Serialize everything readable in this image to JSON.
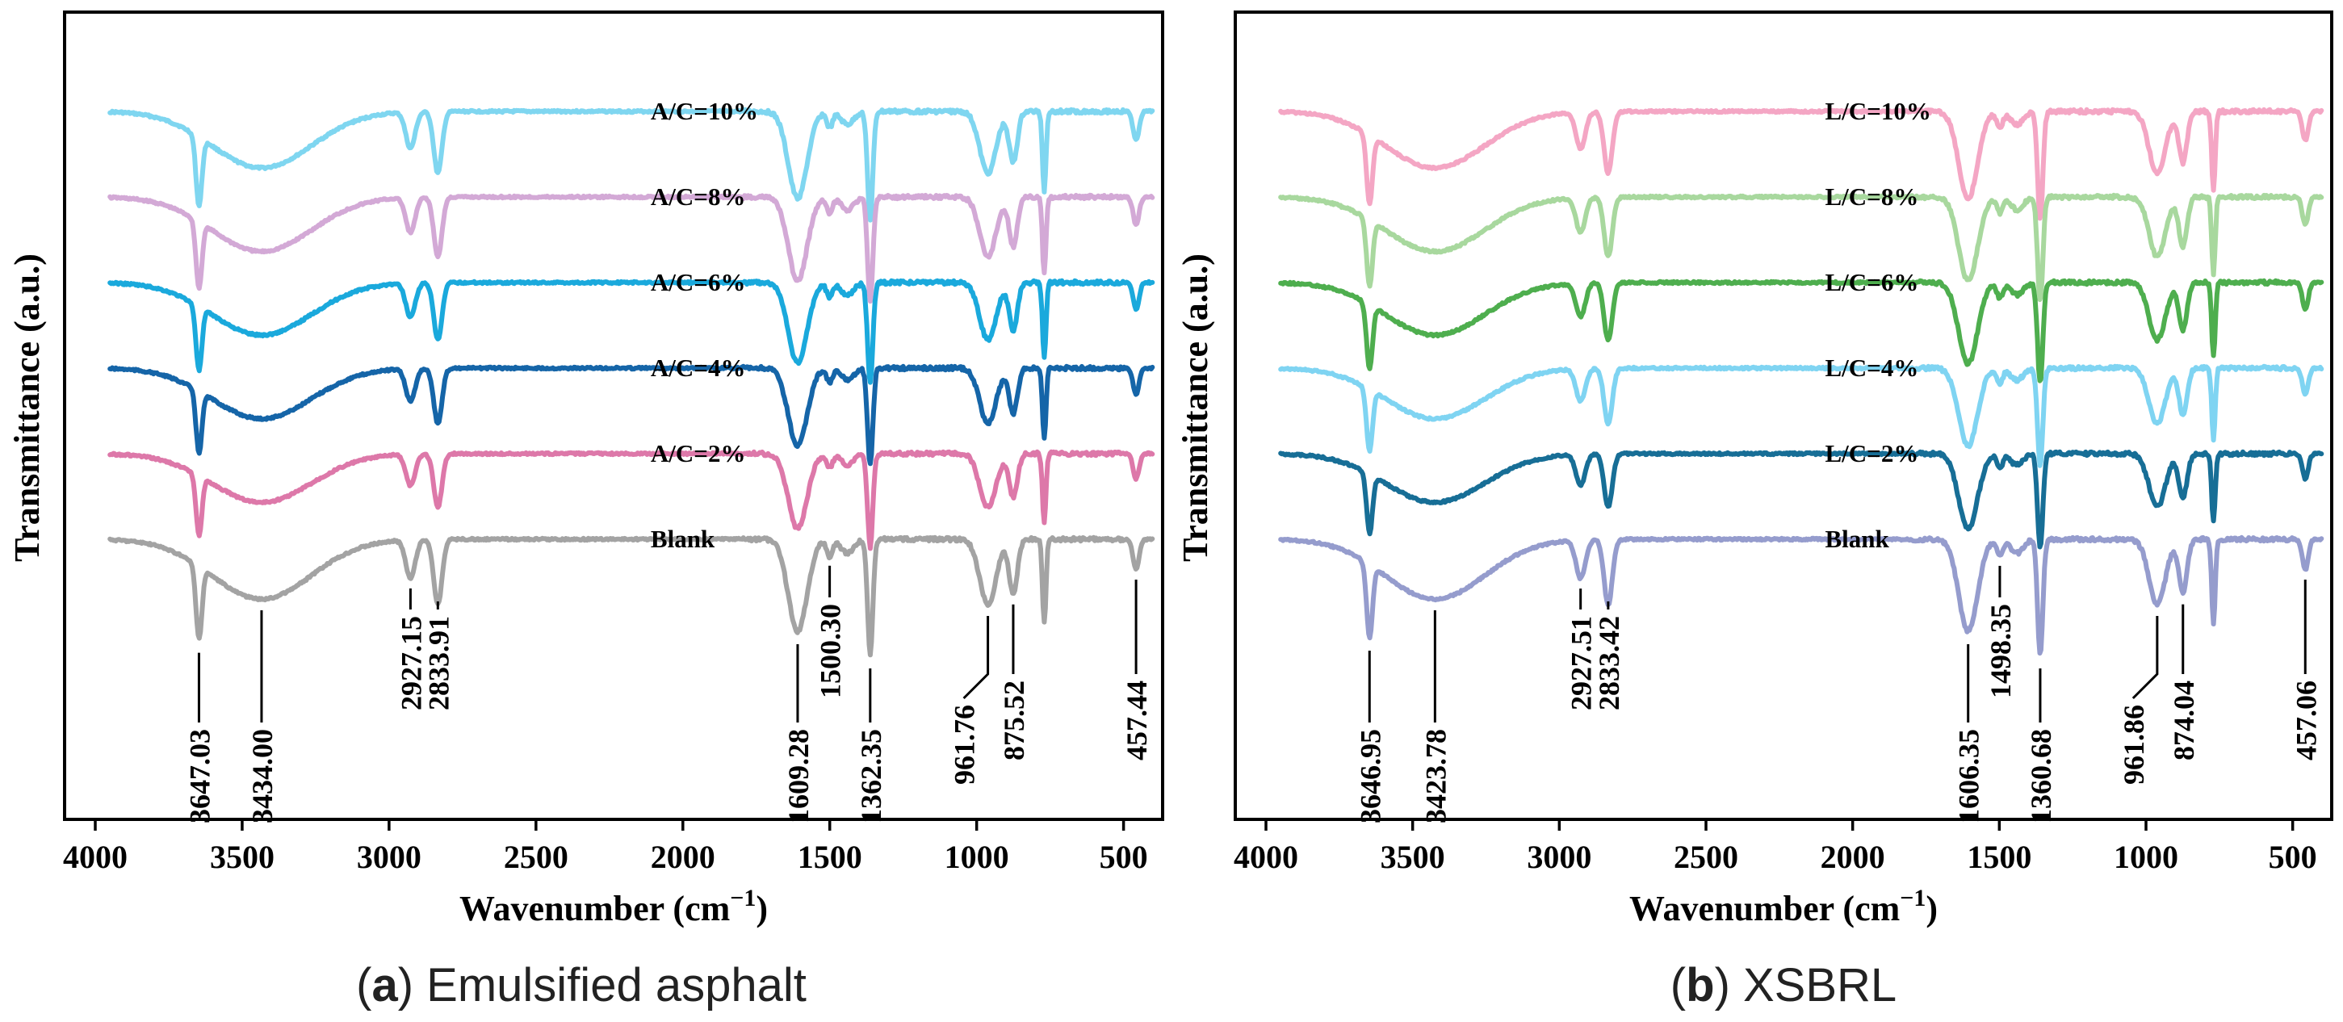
{
  "chart_data": [
    {
      "type": "line",
      "caption_letter": "a",
      "caption_text": "Emulsified asphalt",
      "xlabel_main": "Wavenumber (cm",
      "xlabel_sup": "−1",
      "xlabel_end": ")",
      "ylabel": "Transmittance (a.u.)",
      "xlim": [
        4000,
        400
      ],
      "x_ticks": [
        4000,
        3500,
        3000,
        2500,
        2000,
        1500,
        1000,
        500
      ],
      "series": [
        {
          "name": "A/C=10%",
          "color": "#7fd6f0",
          "offset": 5
        },
        {
          "name": "A/C=8%",
          "color": "#d3a9d6",
          "offset": 4
        },
        {
          "name": "A/C=6%",
          "color": "#1aa9dc",
          "offset": 3
        },
        {
          "name": "A/C=4%",
          "color": "#1565a8",
          "offset": 2
        },
        {
          "name": "A/C=2%",
          "color": "#dd78a9",
          "offset": 1
        },
        {
          "name": "Blank",
          "color": "#a3a3a3",
          "offset": 0
        }
      ],
      "peaks": [
        {
          "wavenumber": 3647.03,
          "label": "3647.03",
          "depth": 0.95
        },
        {
          "wavenumber": 3434.0,
          "label": "3434.00",
          "depth": 0.0
        },
        {
          "wavenumber": 2927.15,
          "label": "2927.15",
          "depth": 0.5
        },
        {
          "wavenumber": 2833.91,
          "label": "2833.91",
          "depth": 0.75
        },
        {
          "wavenumber": 1609.28,
          "label": "1609.28",
          "depth": 0.95
        },
        {
          "wavenumber": 1500.3,
          "label": "1500.30",
          "depth": 0.2
        },
        {
          "wavenumber": 1362.35,
          "label": "1362.35",
          "depth": 1.0
        },
        {
          "wavenumber": 961.76,
          "label": "961.76",
          "depth": 0.65
        },
        {
          "wavenumber": 875.52,
          "label": "875.52",
          "depth": 0.55
        },
        {
          "wavenumber": 457.44,
          "label": "457.44",
          "depth": 0.4
        }
      ]
    },
    {
      "type": "line",
      "caption_letter": "b",
      "caption_text": "XSBRL",
      "xlabel_main": "Wavenumber (cm",
      "xlabel_sup": "−1",
      "xlabel_end": ")",
      "ylabel": "Transmittance (a.u.)",
      "xlim": [
        4000,
        400
      ],
      "x_ticks": [
        4000,
        3500,
        3000,
        2500,
        2000,
        1500,
        1000,
        500
      ],
      "series": [
        {
          "name": "L/C=10%",
          "color": "#f4a6c4",
          "offset": 5
        },
        {
          "name": "L/C=8%",
          "color": "#a8d89e",
          "offset": 4
        },
        {
          "name": "L/C=6%",
          "color": "#4eae4e",
          "offset": 3
        },
        {
          "name": "L/C=4%",
          "color": "#7fd4f2",
          "offset": 2
        },
        {
          "name": "L/C=2%",
          "color": "#176e96",
          "offset": 1
        },
        {
          "name": "Blank",
          "color": "#959ccd",
          "offset": 0
        }
      ],
      "peaks": [
        {
          "wavenumber": 3646.95,
          "label": "3646.95",
          "depth": 0.95
        },
        {
          "wavenumber": 3423.78,
          "label": "3423.78",
          "depth": 0.0
        },
        {
          "wavenumber": 2927.51,
          "label": "2927.51",
          "depth": 0.5
        },
        {
          "wavenumber": 2833.42,
          "label": "2833.42",
          "depth": 0.75
        },
        {
          "wavenumber": 1606.35,
          "label": "1606.35",
          "depth": 0.95
        },
        {
          "wavenumber": 1498.35,
          "label": "1498.35",
          "depth": 0.2
        },
        {
          "wavenumber": 1360.68,
          "label": "1360.68",
          "depth": 1.0
        },
        {
          "wavenumber": 961.86,
          "label": "961.86",
          "depth": 0.65
        },
        {
          "wavenumber": 874.04,
          "label": "874.04",
          "depth": 0.55
        },
        {
          "wavenumber": 457.06,
          "label": "457.06",
          "depth": 0.4
        }
      ]
    }
  ]
}
